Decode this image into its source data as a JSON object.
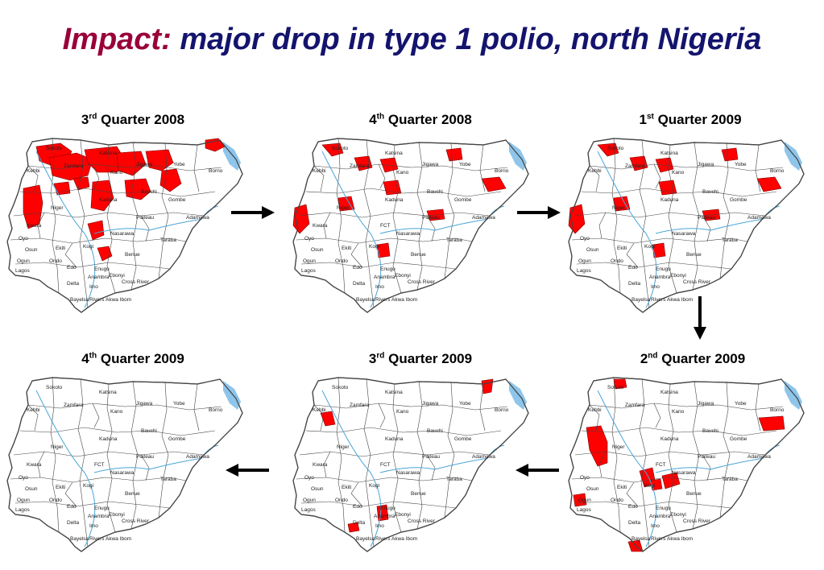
{
  "title": {
    "lead": "Impact:",
    "rest": "major drop in type 1 polio, north Nigeria"
  },
  "colors": {
    "title_lead": "#99003a",
    "title_rest": "#14146e",
    "case_fill": "#ff0000",
    "state_fill": "#ffffff",
    "border": "#444444",
    "river": "#4aa6d8",
    "lake": "#8ec5ea"
  },
  "panels": [
    {
      "quarter": "3",
      "suffix": "rd",
      "year_text": "Quarter 2008",
      "labels": [
        "Sokoto",
        "Katsina",
        "Kebbi",
        "Zamfara",
        "Kano",
        "Jigawa",
        "Yobe",
        "Borno",
        "Bauchi",
        "Gombe",
        "Kaduna",
        "Niger",
        "Plateau",
        "Adamawa",
        "Kwara",
        "Nasarawa",
        "Taraba",
        "Oyo",
        "Ekiti",
        "Kogi",
        "Benue",
        "Osun",
        "Ondo",
        "Ogun",
        "Lagos",
        "Edo",
        "Enugu",
        "Anambra",
        "Ebonyi",
        "Delta",
        "Imo",
        "Cross River",
        "Bayelsa",
        "Rivers",
        "Akwa Ibom"
      ],
      "case_level": "very high"
    },
    {
      "quarter": "4",
      "suffix": "th",
      "year_text": "Quarter 2008",
      "labels": [
        "Sokoto",
        "Katsina",
        "Kebbi",
        "Zamfara",
        "Jigawa",
        "Kano",
        "Yobe",
        "Borno",
        "Bauchi",
        "Gombe",
        "Kaduna",
        "Niger",
        "Plateau",
        "Adamawa",
        "Kwara",
        "FCT",
        "Nasarawa",
        "Taraba",
        "Oyo",
        "Ekiti",
        "Kogi",
        "Benue",
        "Osun",
        "Ondo",
        "Ogun",
        "Lagos",
        "Edo",
        "Enugu",
        "Anambra",
        "Ebonyi",
        "Delta",
        "Imo",
        "Cross River",
        "Bayelsa",
        "Rivers",
        "Akwa Ibom"
      ],
      "case_level": "moderate"
    },
    {
      "quarter": "1",
      "suffix": "st",
      "year_text": "Quarter 2009",
      "labels": [
        "Sokoto",
        "Katsina",
        "Kebbi",
        "Zamfara",
        "Kano",
        "Jigawa",
        "Yobe",
        "Borno",
        "Bauchi",
        "Gombe",
        "Kaduna",
        "Niger",
        "Plateau",
        "Adamawa",
        "Nasarawa",
        "Taraba",
        "Oyo",
        "Ekiti",
        "Kogi",
        "Benue",
        "Osun",
        "Ondo",
        "Ogun",
        "Lagos",
        "Edo",
        "Enugu",
        "Anambra",
        "Ebonyi",
        "Delta",
        "Imo",
        "Cross River",
        "Bayelsa",
        "Rivers",
        "Akwa Ibom"
      ],
      "case_level": "moderate"
    },
    {
      "quarter": "4",
      "suffix": "th",
      "year_text": "Quarter 2009",
      "labels": [
        "Sokoto",
        "Katsina",
        "Kebbi",
        "Zamfara",
        "Jigawa",
        "Kano",
        "Yobe",
        "Borno",
        "Bauchi",
        "Gombe",
        "Kaduna",
        "Niger",
        "Plateau",
        "Adamawa",
        "Kwara",
        "FCT",
        "Nasarawa",
        "Taraba",
        "Oyo",
        "Ekiti",
        "Kogi",
        "Benue",
        "Osun",
        "Ondo",
        "Ogun",
        "Lagos",
        "Edo",
        "Enugu",
        "Anambra",
        "Ebonyi",
        "Delta",
        "Imo",
        "Cross River",
        "Bayelsa",
        "Rivers",
        "Akwa Ibom"
      ],
      "case_level": "none"
    },
    {
      "quarter": "3",
      "suffix": "rd",
      "year_text": "Quarter 2009",
      "labels": [
        "Sokoto",
        "Katsina",
        "Kebbi",
        "Zamfara",
        "Jigawa",
        "Kano",
        "Yobe",
        "Borno",
        "Bauchi",
        "Gombe",
        "Kaduna",
        "Niger",
        "Plateau",
        "Adamawa",
        "Kwara",
        "FCT",
        "Nasarawa",
        "Taraba",
        "Oyo",
        "Ekiti",
        "Kogi",
        "Benue",
        "Osun",
        "Ondo",
        "Ogun",
        "Lagos",
        "Edo",
        "Enugu",
        "Anambra",
        "Ebonyi",
        "Delta",
        "Imo",
        "Cross River",
        "Bayelsa",
        "Rivers",
        "Akwa Ibom"
      ],
      "case_level": "very low"
    },
    {
      "quarter": "2",
      "suffix": "nd",
      "year_text": "Quarter 2009",
      "labels": [
        "Sokoto",
        "Katsina",
        "Kebbi",
        "Zamfara",
        "Kano",
        "Jigawa",
        "Yobe",
        "Borno",
        "Bauchi",
        "Gombe",
        "Kaduna",
        "Niger",
        "Plateau",
        "Adamawa",
        "FCT",
        "Nasarawa",
        "Taraba",
        "Oyo",
        "Ekiti",
        "Kogi",
        "Benue",
        "Osun",
        "Ondo",
        "Ogun",
        "Lagos",
        "Edo",
        "Enugu",
        "Anambra",
        "Ebonyi",
        "Delta",
        "Imo",
        "Cross River",
        "Bayelsa",
        "Rivers",
        "Akwa Ibom"
      ],
      "case_level": "low"
    }
  ],
  "arrows": [
    {
      "direction": "right"
    },
    {
      "direction": "right"
    },
    {
      "direction": "down"
    },
    {
      "direction": "left"
    },
    {
      "direction": "left"
    }
  ]
}
